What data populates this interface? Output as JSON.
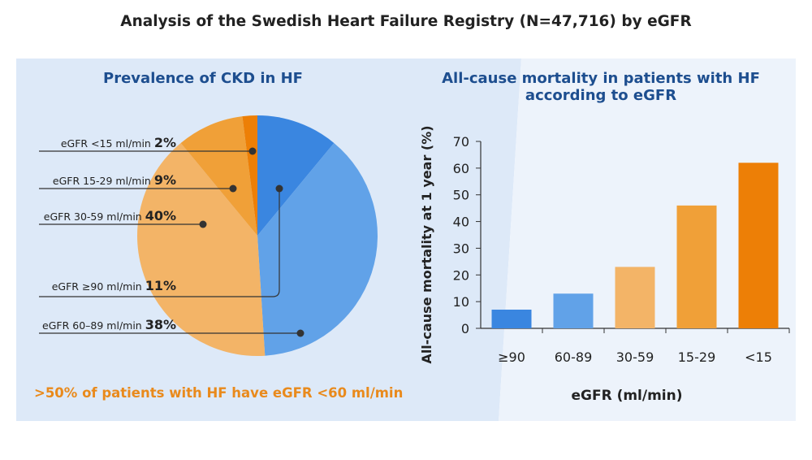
{
  "title": "Analysis of the Swedish Heart Failure Registry (N=47,716) by eGFR",
  "colors": {
    "dark_blue": "#3a86e0",
    "light_blue": "#61a2e8",
    "light_orange": "#f3b467",
    "mid_orange": "#f0a038",
    "dark_orange": "#ed7f06",
    "title_blue": "#1d4e8f",
    "accent_orange": "#e98a1c"
  },
  "chart_data": [
    {
      "type": "pie",
      "title": "Prevalence of CKD in HF",
      "note": ">50% of patients with HF have eGFR <60 ml/min",
      "slices": [
        {
          "label": "eGFR ≥90 ml/min",
          "pct_text": "11%",
          "value": 11,
          "color": "#3a86e0"
        },
        {
          "label": "eGFR 60–89 ml/min",
          "pct_text": "38%",
          "value": 38,
          "color": "#61a2e8"
        },
        {
          "label": "eGFR 30-59 ml/min",
          "pct_text": "40%",
          "value": 40,
          "color": "#f3b467"
        },
        {
          "label": "eGFR 15-29 ml/min",
          "pct_text": "9%",
          "value": 9,
          "color": "#f0a038"
        },
        {
          "label": "eGFR <15 ml/min",
          "pct_text": "2%",
          "value": 2,
          "color": "#ed7f06"
        }
      ],
      "label_order": [
        "eGFR <15 ml/min",
        "eGFR 15-29 ml/min",
        "eGFR 30-59 ml/min",
        "eGFR ≥90 ml/min",
        "eGFR 60–89 ml/min"
      ]
    },
    {
      "type": "bar",
      "title": "All-cause mortality in patients with HF according to eGFR",
      "title_lines": [
        "All-cause mortality in patients with HF",
        "according to eGFR"
      ],
      "categories": [
        "≥90",
        "60-89",
        "30-59",
        "15-29",
        "<15"
      ],
      "values": [
        7,
        13,
        23,
        46,
        62
      ],
      "colors": [
        "#3a86e0",
        "#61a2e8",
        "#f3b467",
        "#f0a038",
        "#ed7f06"
      ],
      "xlabel": "eGFR (ml/min)",
      "ylabel": "All-cause mortality at 1 year (%)",
      "ylim": [
        0,
        70
      ],
      "yticks": [
        0,
        10,
        20,
        30,
        40,
        50,
        60,
        70
      ]
    }
  ]
}
